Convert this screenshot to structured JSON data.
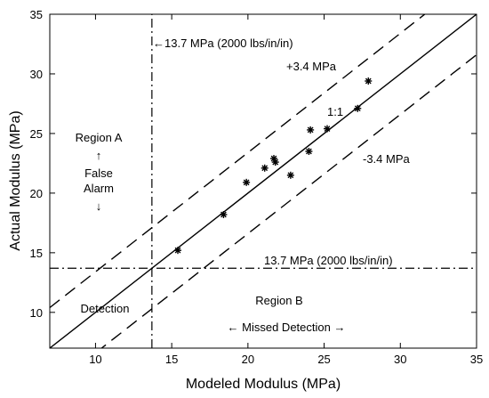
{
  "chart_data": {
    "type": "scatter",
    "title": "",
    "xlabel": "Modeled Modulus (MPa)",
    "ylabel": "Actual Modulus (MPa)",
    "xlim": [
      7,
      35
    ],
    "ylim": [
      7,
      35
    ],
    "xticks": [
      10,
      15,
      20,
      25,
      30,
      35
    ],
    "yticks": [
      10,
      15,
      20,
      25,
      30,
      35
    ],
    "xtick_labels": [
      "10",
      "15",
      "20",
      "25",
      "30",
      "35"
    ],
    "ytick_labels": [
      "10",
      "15",
      "20",
      "25",
      "30",
      "35"
    ],
    "grid": false,
    "legend": "none",
    "threshold": 13.7,
    "band_offset": 3.4,
    "points": [
      {
        "x": 15.4,
        "y": 15.2
      },
      {
        "x": 18.4,
        "y": 18.2
      },
      {
        "x": 19.9,
        "y": 20.9
      },
      {
        "x": 21.1,
        "y": 22.1
      },
      {
        "x": 21.7,
        "y": 22.9
      },
      {
        "x": 21.8,
        "y": 22.6
      },
      {
        "x": 22.8,
        "y": 21.5
      },
      {
        "x": 24.0,
        "y": 23.5
      },
      {
        "x": 24.1,
        "y": 25.3
      },
      {
        "x": 25.2,
        "y": 25.4
      },
      {
        "x": 27.2,
        "y": 27.1
      },
      {
        "x": 27.9,
        "y": 29.4
      }
    ],
    "annotations": {
      "vline_label": "←13.7 MPa (2000 lbs/in/in)",
      "hline_label": "13.7 MPa (2000 lbs/in/in)",
      "upper_band_label": "+3.4 MPa",
      "lower_band_label": "-3.4 MPa",
      "identity_label": "1:1",
      "region_a": "Region A",
      "region_a_arrow_up": "↑",
      "false_line1": "False",
      "false_line2": "Alarm",
      "region_a_arrow_down": "↓",
      "detection": "Detection",
      "region_b": "Region B",
      "missed_detection": "← Missed Detection →"
    }
  }
}
